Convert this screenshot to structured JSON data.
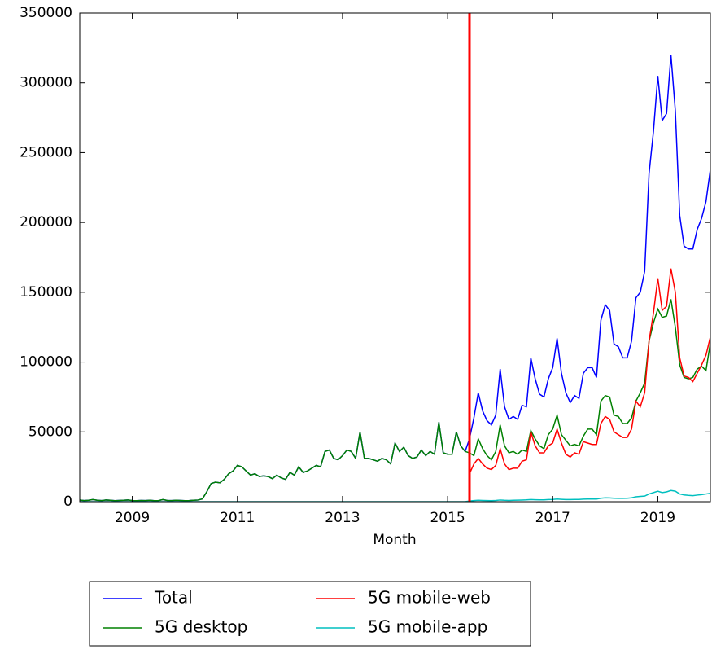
{
  "chart_data": {
    "type": "line",
    "xlabel": "Month",
    "x": [
      "2008-01",
      "2008-02",
      "2008-03",
      "2008-04",
      "2008-05",
      "2008-06",
      "2008-07",
      "2008-08",
      "2008-09",
      "2008-10",
      "2008-11",
      "2008-12",
      "2009-01",
      "2009-02",
      "2009-03",
      "2009-04",
      "2009-05",
      "2009-06",
      "2009-07",
      "2009-08",
      "2009-09",
      "2009-10",
      "2009-11",
      "2009-12",
      "2010-01",
      "2010-02",
      "2010-03",
      "2010-04",
      "2010-05",
      "2010-06",
      "2010-07",
      "2010-08",
      "2010-09",
      "2010-10",
      "2010-11",
      "2010-12",
      "2011-01",
      "2011-02",
      "2011-03",
      "2011-04",
      "2011-05",
      "2011-06",
      "2011-07",
      "2011-08",
      "2011-09",
      "2011-10",
      "2011-11",
      "2011-12",
      "2012-01",
      "2012-02",
      "2012-03",
      "2012-04",
      "2012-05",
      "2012-06",
      "2012-07",
      "2012-08",
      "2012-09",
      "2012-10",
      "2012-11",
      "2012-12",
      "2013-01",
      "2013-02",
      "2013-03",
      "2013-04",
      "2013-05",
      "2013-06",
      "2013-07",
      "2013-08",
      "2013-09",
      "2013-10",
      "2013-11",
      "2013-12",
      "2014-01",
      "2014-02",
      "2014-03",
      "2014-04",
      "2014-05",
      "2014-06",
      "2014-07",
      "2014-08",
      "2014-09",
      "2014-10",
      "2014-11",
      "2014-12",
      "2015-01",
      "2015-02",
      "2015-03",
      "2015-04",
      "2015-05",
      "2015-06",
      "2015-07",
      "2015-08",
      "2015-09",
      "2015-10",
      "2015-11",
      "2015-12",
      "2016-01",
      "2016-02",
      "2016-03",
      "2016-04",
      "2016-05",
      "2016-06",
      "2016-07",
      "2016-08",
      "2016-09",
      "2016-10",
      "2016-11",
      "2016-12",
      "2017-01",
      "2017-02",
      "2017-03",
      "2017-04",
      "2017-05",
      "2017-06",
      "2017-07",
      "2017-08",
      "2017-09",
      "2017-10",
      "2017-11",
      "2017-12",
      "2018-01",
      "2018-02",
      "2018-03",
      "2018-04",
      "2018-05",
      "2018-06",
      "2018-07",
      "2018-08",
      "2018-09",
      "2018-10",
      "2018-11",
      "2018-12",
      "2019-01",
      "2019-02",
      "2019-03",
      "2019-04",
      "2019-05",
      "2019-06",
      "2019-07",
      "2019-08",
      "2019-09",
      "2019-10",
      "2019-11",
      "2019-12",
      "2020-01"
    ],
    "series": [
      {
        "name": "Total",
        "color": "#0000ff",
        "values": [
          1200,
          800,
          1000,
          1500,
          1000,
          800,
          1200,
          1000,
          700,
          900,
          1000,
          1200,
          800,
          700,
          900,
          800,
          1000,
          700,
          800,
          1500,
          900,
          800,
          1000,
          900,
          700,
          800,
          1000,
          1200,
          2000,
          7000,
          13000,
          14000,
          13500,
          16000,
          20000,
          22000,
          26000,
          25000,
          22000,
          19000,
          20000,
          18000,
          18500,
          18000,
          16500,
          19000,
          17000,
          16000,
          21000,
          19000,
          25000,
          21000,
          22000,
          24000,
          26000,
          25000,
          36000,
          37000,
          31000,
          30000,
          33000,
          37000,
          36000,
          31000,
          50000,
          31000,
          31000,
          30000,
          29000,
          31000,
          30000,
          27000,
          42000,
          36000,
          39000,
          33000,
          31000,
          32000,
          37000,
          33000,
          36000,
          34000,
          57000,
          35000,
          34000,
          34000,
          50000,
          40000,
          36000,
          45000,
          60000,
          78000,
          65000,
          58000,
          55000,
          62000,
          95000,
          68000,
          59000,
          61000,
          59000,
          69000,
          68000,
          103000,
          88000,
          77000,
          75000,
          88000,
          96000,
          117000,
          92000,
          78000,
          71000,
          76000,
          74000,
          92000,
          96000,
          96000,
          89000,
          130000,
          141000,
          137000,
          113000,
          111000,
          103000,
          103000,
          115000,
          146000,
          150000,
          165000,
          235000,
          265000,
          305000,
          273000,
          278000,
          320000,
          280000,
          205000,
          183000,
          181000,
          181000,
          195000,
          203000,
          215000,
          238000
        ]
      },
      {
        "name": "5G desktop",
        "color": "#008000",
        "values": [
          1200,
          800,
          1000,
          1500,
          1000,
          800,
          1200,
          1000,
          700,
          900,
          1000,
          1200,
          800,
          700,
          900,
          800,
          1000,
          700,
          800,
          1500,
          900,
          800,
          1000,
          900,
          700,
          800,
          1000,
          1200,
          2000,
          7000,
          13000,
          14000,
          13500,
          16000,
          20000,
          22000,
          26000,
          25000,
          22000,
          19000,
          20000,
          18000,
          18500,
          18000,
          16500,
          19000,
          17000,
          16000,
          21000,
          19000,
          25000,
          21000,
          22000,
          24000,
          26000,
          25000,
          36000,
          37000,
          31000,
          30000,
          33000,
          37000,
          36000,
          31000,
          50000,
          31000,
          31000,
          30000,
          29000,
          31000,
          30000,
          27000,
          42000,
          36000,
          39000,
          33000,
          31000,
          32000,
          37000,
          33000,
          36000,
          34000,
          57000,
          35000,
          34000,
          34000,
          50000,
          40000,
          36000,
          35000,
          33000,
          45000,
          38000,
          33000,
          30000,
          36000,
          55000,
          40000,
          35000,
          36000,
          34000,
          37000,
          36000,
          51000,
          45000,
          40000,
          38000,
          48000,
          52000,
          62000,
          48000,
          44000,
          40000,
          41000,
          40000,
          47000,
          52000,
          52000,
          48000,
          72000,
          76000,
          75000,
          62000,
          61000,
          56000,
          56000,
          60000,
          72000,
          78000,
          85000,
          115000,
          128000,
          138000,
          132000,
          133000,
          145000,
          125000,
          98000,
          89000,
          88000,
          89000,
          95000,
          97000,
          94000,
          114000
        ]
      },
      {
        "name": "5G mobile-web",
        "color": "#ff0000",
        "values": [
          null,
          null,
          null,
          null,
          null,
          null,
          null,
          null,
          null,
          null,
          null,
          null,
          null,
          null,
          null,
          null,
          null,
          null,
          null,
          null,
          null,
          null,
          null,
          null,
          null,
          null,
          null,
          null,
          null,
          null,
          null,
          null,
          null,
          null,
          null,
          null,
          null,
          null,
          null,
          null,
          null,
          null,
          null,
          null,
          null,
          null,
          null,
          null,
          null,
          null,
          null,
          null,
          null,
          null,
          null,
          null,
          null,
          null,
          null,
          null,
          null,
          null,
          null,
          null,
          null,
          null,
          null,
          null,
          null,
          null,
          null,
          null,
          null,
          null,
          null,
          null,
          null,
          null,
          null,
          null,
          null,
          null,
          null,
          null,
          null,
          null,
          null,
          null,
          null,
          20000,
          27000,
          31000,
          27000,
          24000,
          23000,
          26000,
          38000,
          27000,
          23000,
          24000,
          24000,
          29000,
          30000,
          50000,
          40000,
          35000,
          35000,
          40000,
          42000,
          52000,
          42000,
          34000,
          32000,
          35000,
          34000,
          43000,
          42000,
          41000,
          41000,
          56000,
          61000,
          59000,
          50000,
          48000,
          46000,
          46000,
          52000,
          72000,
          68000,
          78000,
          115000,
          135000,
          160000,
          137000,
          140000,
          167000,
          150000,
          103000,
          90000,
          89000,
          86000,
          92000,
          98000,
          105000,
          118000
        ]
      },
      {
        "name": "5G mobile-app",
        "color": "#00bfbf",
        "values": [
          0,
          0,
          0,
          0,
          0,
          0,
          0,
          0,
          0,
          0,
          0,
          0,
          0,
          0,
          0,
          0,
          0,
          0,
          0,
          0,
          0,
          0,
          0,
          0,
          0,
          0,
          0,
          0,
          0,
          0,
          0,
          0,
          0,
          0,
          0,
          0,
          0,
          0,
          0,
          0,
          0,
          0,
          0,
          0,
          0,
          0,
          0,
          0,
          0,
          0,
          0,
          0,
          0,
          0,
          0,
          0,
          0,
          0,
          0,
          0,
          0,
          0,
          0,
          0,
          0,
          0,
          0,
          0,
          0,
          0,
          0,
          0,
          0,
          0,
          0,
          0,
          0,
          0,
          0,
          0,
          0,
          0,
          0,
          0,
          0,
          0,
          0,
          0,
          0,
          500,
          800,
          1000,
          900,
          800,
          700,
          900,
          1200,
          1000,
          900,
          1000,
          1100,
          1200,
          1300,
          1500,
          1400,
          1300,
          1300,
          1500,
          1600,
          1900,
          1700,
          1500,
          1500,
          1600,
          1600,
          1800,
          1900,
          1900,
          1900,
          2500,
          2800,
          2700,
          2500,
          2400,
          2400,
          2500,
          2800,
          3500,
          3800,
          4000,
          5500,
          6500,
          7500,
          6500,
          7000,
          8000,
          7500,
          5500,
          4800,
          4500,
          4300,
          4700,
          5000,
          5500,
          6000
        ]
      }
    ],
    "vline": {
      "x": "2015-06",
      "color": "#ff0000"
    },
    "xlim": [
      2008,
      2020
    ],
    "xticks": [
      2009,
      2011,
      2013,
      2015,
      2017,
      2019
    ],
    "ylim": [
      0,
      350000
    ],
    "yticks": [
      0,
      50000,
      100000,
      150000,
      200000,
      250000,
      300000,
      350000
    ],
    "grid": false,
    "legend": "below"
  }
}
